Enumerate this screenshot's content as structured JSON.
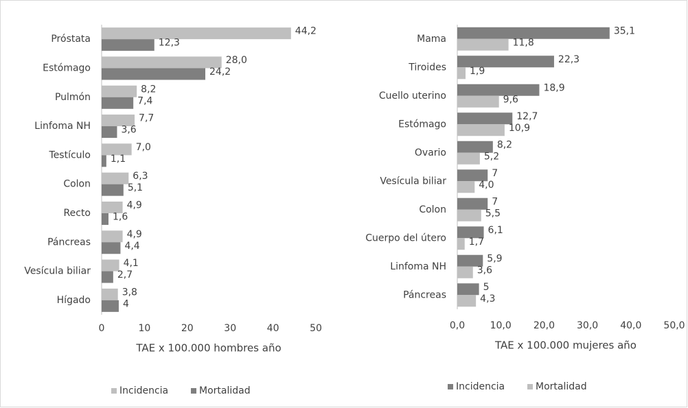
{
  "chart_data": [
    {
      "type": "bar",
      "orientation": "horizontal",
      "categories": [
        "Próstata",
        "Estómago",
        "Pulmón",
        "Linfoma NH",
        "Testículo",
        "Colon",
        "Recto",
        "Páncreas",
        "Vesícula biliar",
        "Hígado"
      ],
      "series": [
        {
          "name": "Incidencia",
          "color": "#bfbfbf",
          "values": [
            44.2,
            28.0,
            8.2,
            7.7,
            7.0,
            6.3,
            4.9,
            4.9,
            4.1,
            3.8
          ],
          "value_labels": [
            "44,2",
            "28,0",
            "8,2",
            "7,7",
            "7,0",
            "6,3",
            "4,9",
            "4,9",
            "4,1",
            "3,8"
          ]
        },
        {
          "name": "Mortalidad",
          "color": "#7f7f7f",
          "values": [
            12.3,
            24.2,
            7.4,
            3.6,
            1.1,
            5.1,
            1.6,
            4.4,
            2.7,
            4
          ],
          "value_labels": [
            "12,3",
            "24,2",
            "7,4",
            "3,6",
            "1,1",
            "5,1",
            "1,6",
            "4,4",
            "2,7",
            "4"
          ]
        }
      ],
      "xlim": [
        0,
        50
      ],
      "xticks": [
        0,
        10,
        20,
        30,
        40,
        50
      ],
      "xlabel": "TAE x 100.000 hombres año",
      "legend": "bottom"
    },
    {
      "type": "bar",
      "orientation": "horizontal",
      "categories": [
        "Mama",
        "Tiroides",
        "Cuello uterino",
        "Estómago",
        "Ovario",
        "Vesícula biliar",
        "Colon",
        "Cuerpo del útero",
        "Linfoma NH",
        "Páncreas"
      ],
      "series": [
        {
          "name": "Incidencia",
          "color": "#7f7f7f",
          "values": [
            35.1,
            22.3,
            18.9,
            12.7,
            8.2,
            7,
            7,
            6.1,
            5.9,
            5
          ],
          "value_labels": [
            "35,1",
            "22,3",
            "18,9",
            "12,7",
            "8,2",
            "7",
            "7",
            "6,1",
            "5,9",
            "5"
          ]
        },
        {
          "name": "Mortalidad",
          "color": "#bfbfbf",
          "values": [
            11.8,
            1.9,
            9.6,
            10.9,
            5.2,
            4.0,
            5.5,
            1.7,
            3.6,
            4.3
          ],
          "value_labels": [
            "11,8",
            "1,9",
            "9,6",
            "10,9",
            "5,2",
            "4,0",
            "5,5",
            "1,7",
            "3,6",
            "4,3"
          ]
        }
      ],
      "xlim": [
        0,
        50
      ],
      "xticks": [
        {
          "value": 0,
          "label": "0,0"
        },
        {
          "value": 10,
          "label": "10,0"
        },
        {
          "value": 20,
          "label": "20,0"
        },
        {
          "value": 30,
          "label": "30,0"
        },
        {
          "value": 40,
          "label": "40,0"
        },
        {
          "value": 50,
          "label": "50,0"
        }
      ],
      "xlabel": "TAE x 100.000 mujeres año",
      "legend": "bottom"
    }
  ]
}
